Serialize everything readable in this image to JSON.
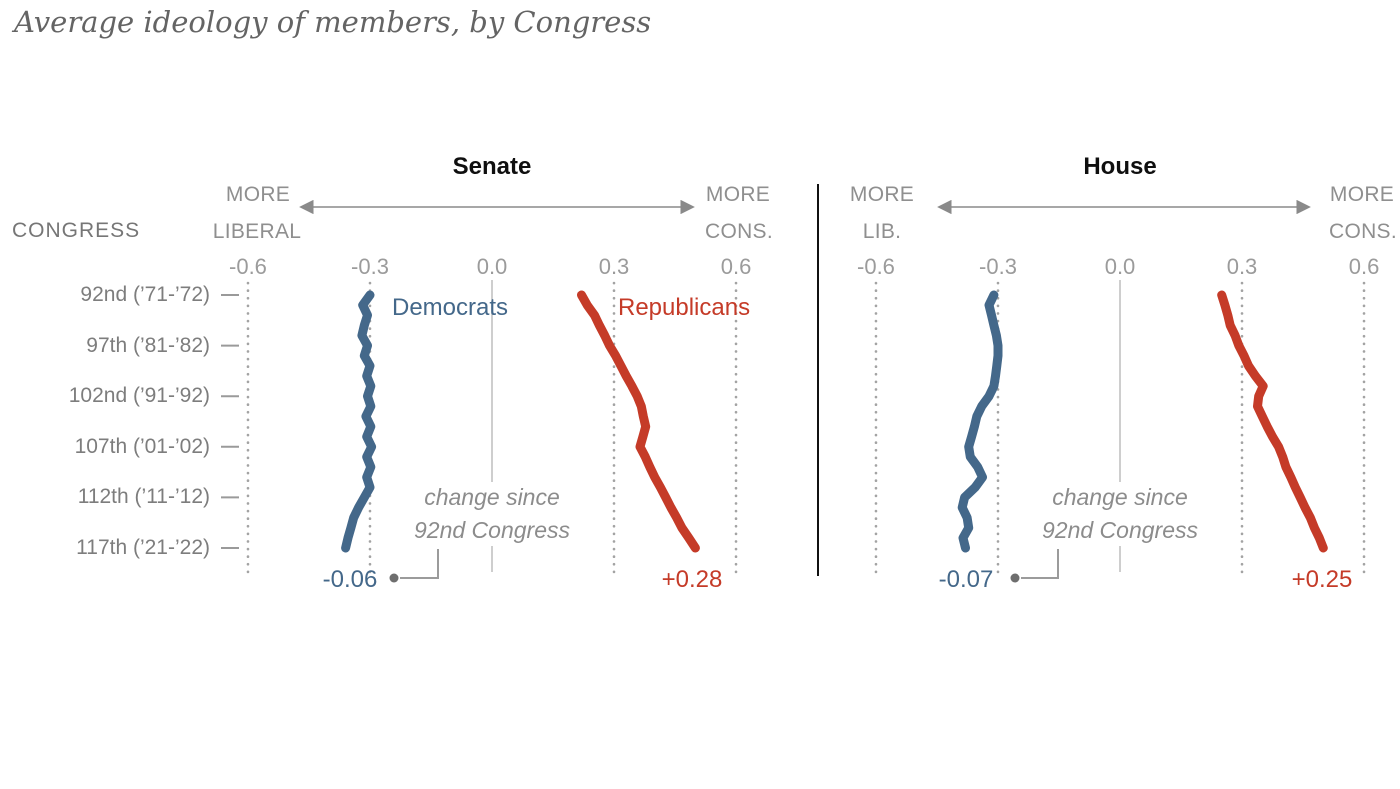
{
  "title": "Average ideology of members, by Congress",
  "congress_column": {
    "header": "CONGRESS",
    "rows": [
      {
        "congress": 92,
        "label": "92nd (’71-’72)"
      },
      {
        "congress": 97,
        "label": "97th (’81-’82)"
      },
      {
        "congress": 102,
        "label": "102nd (’91-’92)"
      },
      {
        "congress": 107,
        "label": "107th (’01-’02)"
      },
      {
        "congress": 112,
        "label": "112th (’11-’12)"
      },
      {
        "congress": 117,
        "label": "117th (’21-’22)"
      }
    ]
  },
  "colors": {
    "democrat": "#44688a",
    "republican": "#c53b28",
    "axis_gray": "#9b9b9b",
    "grid_dot_gray": "#a3a3a3",
    "zero_line_gray": "#bdbdbd",
    "annotation_gray": "#8c8c8c",
    "divider_black": "#111111"
  },
  "chart_data": [
    {
      "type": "line",
      "title": "Senate",
      "congress_range": [
        92,
        117
      ],
      "x_axis": {
        "ticks": [
          "-0.6",
          "-0.3",
          "0.0",
          "0.3",
          "0.6"
        ],
        "values": [
          -0.6,
          -0.3,
          0.0,
          0.3,
          0.6
        ],
        "left_label": [
          "MORE",
          "LIBERAL"
        ],
        "right_label": [
          "MORE",
          "CONS."
        ]
      },
      "annotation": [
        "change since",
        "92nd Congress"
      ],
      "series": [
        {
          "name": "Democrats",
          "color": "#44688a",
          "change_label": "-0.06",
          "values": [
            -0.3,
            -0.318,
            -0.306,
            -0.314,
            -0.32,
            -0.306,
            -0.314,
            -0.3,
            -0.308,
            -0.298,
            -0.306,
            -0.298,
            -0.31,
            -0.298,
            -0.308,
            -0.296,
            -0.308,
            -0.298,
            -0.308,
            -0.3,
            -0.314,
            -0.328,
            -0.34,
            -0.347,
            -0.354,
            -0.36
          ]
        },
        {
          "name": "Republicans",
          "color": "#c53b28",
          "change_label": "+0.28",
          "values": [
            0.22,
            0.234,
            0.252,
            0.264,
            0.277,
            0.289,
            0.304,
            0.317,
            0.33,
            0.344,
            0.357,
            0.367,
            0.372,
            0.378,
            0.371,
            0.364,
            0.377,
            0.388,
            0.4,
            0.414,
            0.427,
            0.44,
            0.454,
            0.467,
            0.484,
            0.5
          ]
        }
      ]
    },
    {
      "type": "line",
      "title": "House",
      "congress_range": [
        92,
        117
      ],
      "x_axis": {
        "ticks": [
          "-0.6",
          "-0.3",
          "0.0",
          "0.3",
          "0.6"
        ],
        "values": [
          -0.6,
          -0.3,
          0.0,
          0.3,
          0.6
        ],
        "left_label": [
          "MORE",
          "LIB."
        ],
        "right_label": [
          "MORE",
          "CONS."
        ]
      },
      "annotation": [
        "change since",
        "92nd Congress"
      ],
      "series": [
        {
          "name": "Democrats",
          "color": "#44688a",
          "change_label": "-0.07",
          "values": [
            -0.31,
            -0.322,
            -0.316,
            -0.31,
            -0.304,
            -0.3,
            -0.3,
            -0.303,
            -0.306,
            -0.31,
            -0.322,
            -0.34,
            -0.352,
            -0.358,
            -0.365,
            -0.372,
            -0.368,
            -0.35,
            -0.338,
            -0.356,
            -0.382,
            -0.388,
            -0.376,
            -0.372,
            -0.386,
            -0.38
          ]
        },
        {
          "name": "Republicans",
          "color": "#c53b28",
          "change_label": "+0.25",
          "values": [
            0.25,
            0.258,
            0.265,
            0.271,
            0.283,
            0.292,
            0.305,
            0.316,
            0.333,
            0.352,
            0.341,
            0.338,
            0.35,
            0.362,
            0.375,
            0.39,
            0.4,
            0.408,
            0.42,
            0.431,
            0.443,
            0.455,
            0.468,
            0.478,
            0.49,
            0.5
          ]
        }
      ]
    }
  ]
}
